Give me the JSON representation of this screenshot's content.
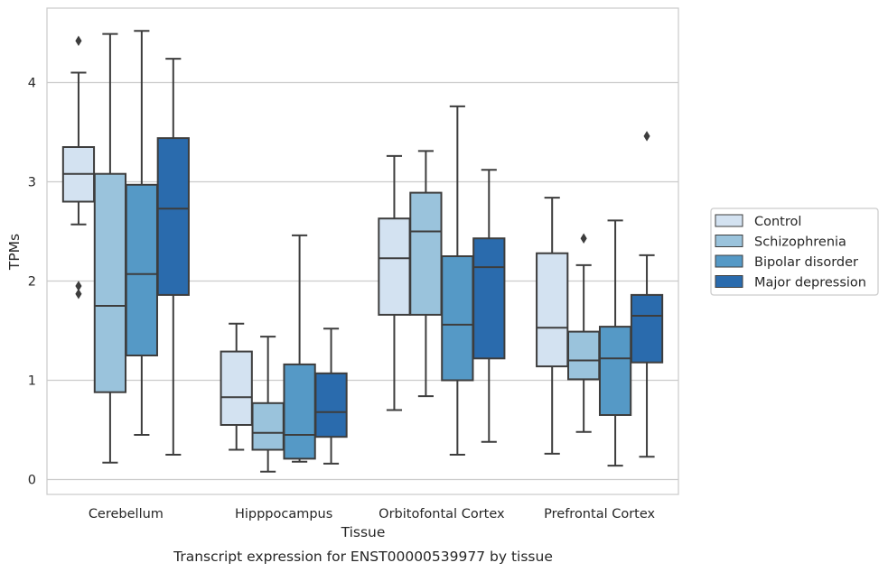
{
  "chart_data": {
    "type": "box",
    "title": "",
    "caption": "Transcript expression for ENST00000539977 by tissue",
    "xlabel": "Tissue",
    "ylabel": "TPMs",
    "ylim": [
      -0.15,
      4.75
    ],
    "yticks": [
      0,
      1,
      2,
      3,
      4
    ],
    "grid": "horizontal",
    "legend_position": "right",
    "categories": [
      "Cerebellum",
      "Hipppocampus",
      "Orbitofontal Cortex",
      "Prefrontal Cortex"
    ],
    "series": [
      {
        "name": "Control",
        "color": "#d3e2f1",
        "boxes": [
          {
            "whislo": 2.57,
            "q1": 2.8,
            "med": 3.08,
            "q3": 3.35,
            "whishi": 4.1,
            "fliers": [
              4.42,
              1.95,
              1.87
            ]
          },
          {
            "whislo": 0.3,
            "q1": 0.55,
            "med": 0.83,
            "q3": 1.29,
            "whishi": 1.57,
            "fliers": []
          },
          {
            "whislo": 0.7,
            "q1": 1.66,
            "med": 2.23,
            "q3": 2.63,
            "whishi": 3.26,
            "fliers": []
          },
          {
            "whislo": 0.26,
            "q1": 1.14,
            "med": 1.53,
            "q3": 2.28,
            "whishi": 2.84,
            "fliers": []
          }
        ]
      },
      {
        "name": "Schizophrenia",
        "color": "#9ac3dc",
        "boxes": [
          {
            "whislo": 0.17,
            "q1": 0.88,
            "med": 1.75,
            "q3": 3.08,
            "whishi": 4.49,
            "fliers": []
          },
          {
            "whislo": 0.08,
            "q1": 0.3,
            "med": 0.47,
            "q3": 0.77,
            "whishi": 1.44,
            "fliers": []
          },
          {
            "whislo": 0.84,
            "q1": 1.66,
            "med": 2.5,
            "q3": 2.89,
            "whishi": 3.31,
            "fliers": []
          },
          {
            "whislo": 0.48,
            "q1": 1.01,
            "med": 1.2,
            "q3": 1.49,
            "whishi": 2.16,
            "fliers": [
              2.43
            ]
          }
        ]
      },
      {
        "name": "Bipolar disorder",
        "color": "#5599c6",
        "boxes": [
          {
            "whislo": 0.45,
            "q1": 1.25,
            "med": 2.07,
            "q3": 2.97,
            "whishi": 4.52,
            "fliers": []
          },
          {
            "whislo": 0.18,
            "q1": 0.21,
            "med": 0.45,
            "q3": 1.16,
            "whishi": 2.46,
            "fliers": []
          },
          {
            "whislo": 0.25,
            "q1": 1.0,
            "med": 1.56,
            "q3": 2.25,
            "whishi": 3.76,
            "fliers": []
          },
          {
            "whislo": 0.14,
            "q1": 0.65,
            "med": 1.22,
            "q3": 1.54,
            "whishi": 2.61,
            "fliers": []
          }
        ]
      },
      {
        "name": "Major depression",
        "color": "#2a6bad",
        "boxes": [
          {
            "whislo": 0.25,
            "q1": 1.86,
            "med": 2.73,
            "q3": 3.44,
            "whishi": 4.24,
            "fliers": []
          },
          {
            "whislo": 0.16,
            "q1": 0.43,
            "med": 0.68,
            "q3": 1.07,
            "whishi": 1.52,
            "fliers": []
          },
          {
            "whislo": 0.38,
            "q1": 1.22,
            "med": 2.14,
            "q3": 2.43,
            "whishi": 3.12,
            "fliers": []
          },
          {
            "whislo": 0.23,
            "q1": 1.18,
            "med": 1.65,
            "q3": 1.86,
            "whishi": 2.26,
            "fliers": [
              3.46
            ]
          }
        ]
      }
    ]
  }
}
